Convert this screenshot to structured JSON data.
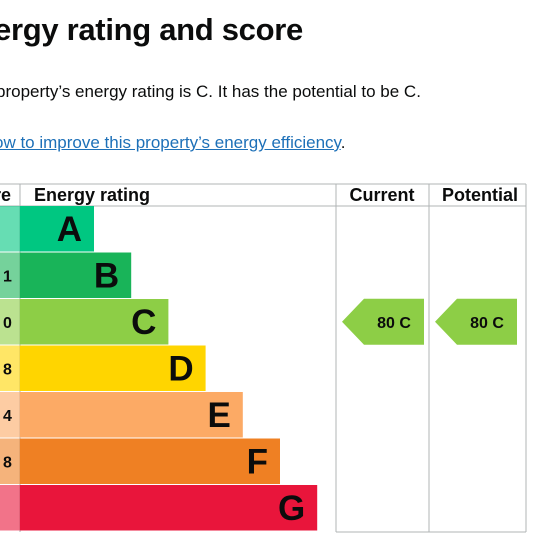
{
  "page": {
    "title": "ergy rating and score",
    "summary": "property’s energy rating is C. It has the potential to be C.",
    "improve_link": "ow to improve this property’s energy efficiency",
    "improve_suffix": "."
  },
  "table": {
    "headers": {
      "score": "re",
      "energy_rating": "Energy rating",
      "current": "Current",
      "potential": "Potential"
    },
    "bands": [
      {
        "letter": "A",
        "score_label": "",
        "color": "#00c781"
      },
      {
        "letter": "B",
        "score_label": "1",
        "color": "#19b459"
      },
      {
        "letter": "C",
        "score_label": "0",
        "color": "#8dce46"
      },
      {
        "letter": "D",
        "score_label": "8",
        "color": "#ffd500"
      },
      {
        "letter": "E",
        "score_label": "4",
        "color": "#fcaa65"
      },
      {
        "letter": "F",
        "score_label": "8",
        "color": "#ef8023"
      },
      {
        "letter": "G",
        "score_label": "",
        "color": "#e9153b"
      }
    ],
    "current": {
      "label": "80  C",
      "band": "C",
      "color": "#8dce46"
    },
    "potential": {
      "label": "80  C",
      "band": "C",
      "color": "#8dce46"
    }
  }
}
